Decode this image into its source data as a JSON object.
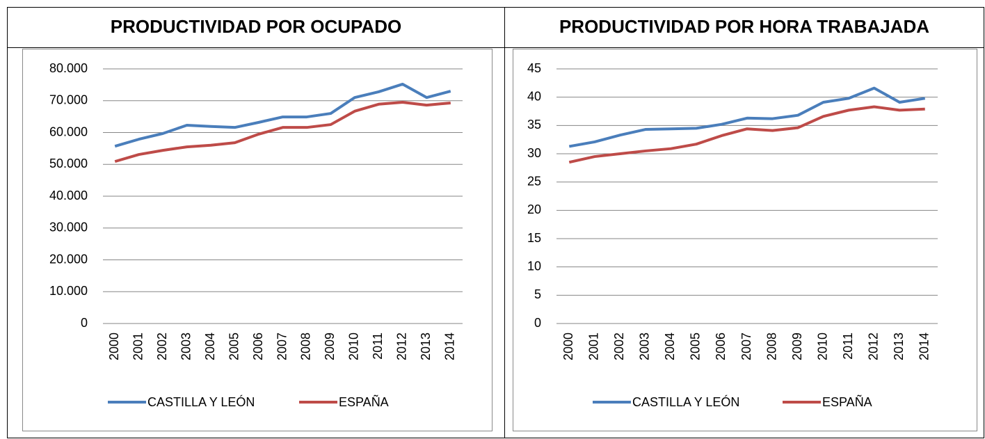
{
  "chart_data": [
    {
      "type": "line",
      "title": "PRODUCTIVIDAD POR OCUPADO",
      "categories": [
        "2000",
        "2001",
        "2002",
        "2003",
        "2004",
        "2005",
        "2006",
        "2007",
        "2008",
        "2009",
        "2010",
        "2011",
        "2012",
        "2013",
        "2014"
      ],
      "series": [
        {
          "name": "CASTILLA Y LEÓN",
          "color": "#4a7ebb",
          "values": [
            55700,
            57900,
            59700,
            62300,
            61900,
            61600,
            63200,
            64900,
            64900,
            66000,
            71000,
            72800,
            75200,
            71000,
            73000
          ]
        },
        {
          "name": "ESPAÑA",
          "color": "#be4b48",
          "values": [
            50900,
            53100,
            54400,
            55500,
            56000,
            56800,
            59500,
            61600,
            61600,
            62500,
            66700,
            68900,
            69500,
            68600,
            69300
          ]
        }
      ],
      "ylim": [
        0,
        80000
      ],
      "yticks": [
        0,
        {
          "value": 10000,
          "label": "10.000"
        },
        {
          "value": 20000,
          "label": "20.000"
        },
        {
          "value": 30000,
          "label": "30.000"
        },
        {
          "value": 40000,
          "label": "40.000"
        },
        {
          "value": 50000,
          "label": "50.000"
        },
        {
          "value": 60000,
          "label": "60.000"
        },
        {
          "value": 70000,
          "label": "70.000"
        },
        {
          "value": 80000,
          "label": "80.000"
        }
      ],
      "grid": true,
      "legend": "bottom"
    },
    {
      "type": "line",
      "title": "PRODUCTIVIDAD POR HORA TRABAJADA",
      "categories": [
        "2000",
        "2001",
        "2002",
        "2003",
        "2004",
        "2005",
        "2006",
        "2007",
        "2008",
        "2009",
        "2010",
        "2011",
        "2012",
        "2013",
        "2014"
      ],
      "series": [
        {
          "name": "CASTILLA Y LEÓN",
          "color": "#4a7ebb",
          "values": [
            31.3,
            32.1,
            33.3,
            34.3,
            34.4,
            34.5,
            35.2,
            36.3,
            36.2,
            36.8,
            39.1,
            39.8,
            41.6,
            39.1,
            39.8
          ]
        },
        {
          "name": "ESPAÑA",
          "color": "#be4b48",
          "values": [
            28.5,
            29.5,
            30.0,
            30.5,
            30.9,
            31.7,
            33.2,
            34.4,
            34.1,
            34.6,
            36.6,
            37.7,
            38.3,
            37.7,
            37.9
          ]
        }
      ],
      "ylim": [
        0,
        45
      ],
      "yticks": [
        0,
        5,
        10,
        15,
        20,
        25,
        30,
        35,
        40,
        45
      ],
      "grid": true,
      "legend": "bottom"
    }
  ]
}
